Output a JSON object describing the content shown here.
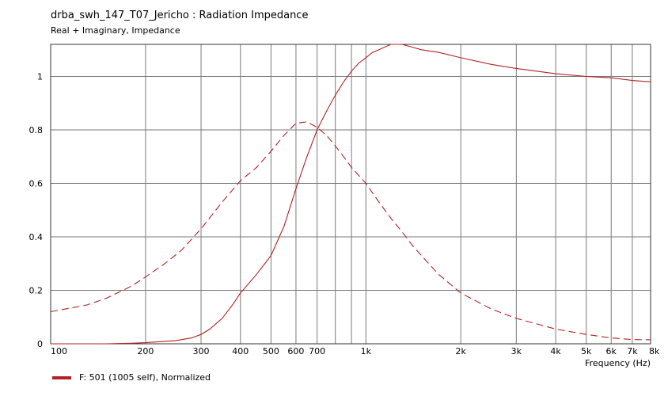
{
  "chart_data": {
    "type": "line",
    "title": "drba_swh_147_T07_Jericho : Radiation Impedance",
    "subtitle": "Real + Imaginary, Impedance",
    "xlabel": "Frequency  (Hz)",
    "x_scale": "log",
    "xlim": [
      100,
      8000
    ],
    "ylim": [
      0,
      1.12
    ],
    "grid": true,
    "x_tick_values": [
      100,
      200,
      300,
      400,
      500,
      600,
      700,
      1000,
      2000,
      3000,
      4000,
      5000,
      6000,
      7000,
      8000
    ],
    "x_tick_labels": [
      "100",
      "200",
      "300",
      "400",
      "500",
      "600",
      "700",
      "1k",
      "2k",
      "3k",
      "4k",
      "5k",
      "6k",
      "7k",
      "8k"
    ],
    "x_minor_grid": [
      800,
      900
    ],
    "y_tick_values": [
      0,
      0.2,
      0.4,
      0.6,
      0.8,
      1
    ],
    "y_tick_labels": [
      "0",
      "0.2",
      "0.4",
      "0.6",
      "0.8",
      "1"
    ],
    "legend_label": "F: 501 (1005 self), Normalized",
    "legend_placement": "bottom-left",
    "series_color": "#b22222",
    "series": [
      {
        "style": "solid",
        "x": [
          100,
          150,
          180,
          200,
          250,
          280,
          300,
          320,
          350,
          380,
          400,
          450,
          500,
          550,
          600,
          650,
          700,
          750,
          800,
          850,
          900,
          950,
          1000,
          1050,
          1100,
          1200,
          1300,
          1400,
          1500,
          1700,
          2000,
          2500,
          3000,
          4000,
          5000,
          6000,
          7000,
          8000
        ],
        "y": [
          0,
          0,
          0.002,
          0.004,
          0.012,
          0.022,
          0.035,
          0.055,
          0.095,
          0.15,
          0.19,
          0.26,
          0.33,
          0.44,
          0.58,
          0.7,
          0.8,
          0.87,
          0.93,
          0.98,
          1.02,
          1.05,
          1.07,
          1.09,
          1.1,
          1.12,
          1.12,
          1.11,
          1.1,
          1.09,
          1.07,
          1.045,
          1.03,
          1.01,
          1.0,
          0.995,
          0.985,
          0.98
        ]
      },
      {
        "style": "dashed",
        "x": [
          100,
          130,
          150,
          180,
          200,
          230,
          260,
          300,
          350,
          400,
          450,
          500,
          550,
          600,
          650,
          700,
          750,
          800,
          850,
          900,
          1000,
          1100,
          1200,
          1300,
          1400,
          1500,
          1700,
          2000,
          2500,
          3000,
          4000,
          5000,
          6000,
          7000,
          8000
        ],
        "y": [
          0.12,
          0.145,
          0.17,
          0.215,
          0.25,
          0.3,
          0.35,
          0.43,
          0.53,
          0.61,
          0.66,
          0.72,
          0.78,
          0.825,
          0.83,
          0.81,
          0.78,
          0.74,
          0.7,
          0.66,
          0.6,
          0.53,
          0.47,
          0.42,
          0.37,
          0.33,
          0.26,
          0.19,
          0.13,
          0.095,
          0.055,
          0.035,
          0.022,
          0.016,
          0.015
        ]
      }
    ]
  }
}
